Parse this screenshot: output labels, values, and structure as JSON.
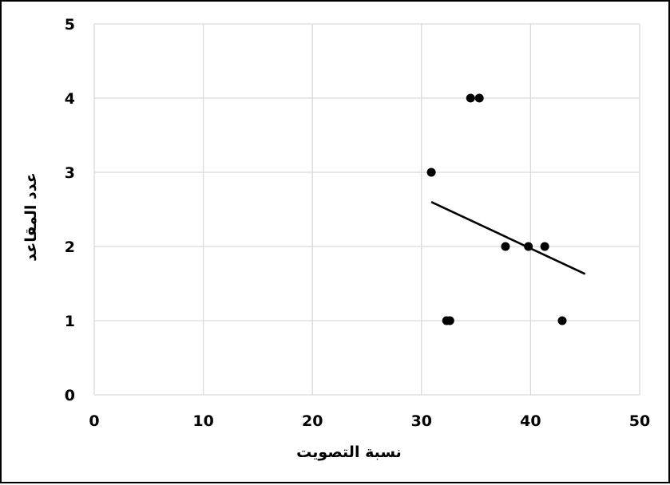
{
  "chart_data": {
    "type": "scatter",
    "title": "",
    "xlabel": "نسبة التصويت",
    "ylabel": "عدد المقاعد",
    "xlim": [
      0,
      50
    ],
    "ylim": [
      0,
      5
    ],
    "xticks": [
      0,
      10,
      20,
      30,
      40,
      50
    ],
    "yticks": [
      0,
      1,
      2,
      3,
      4,
      5
    ],
    "grid": true,
    "legend": "none",
    "marker_color": "#000000",
    "grid_color": "#d9d9d9",
    "points": [
      {
        "x": 30.9,
        "y": 3
      },
      {
        "x": 34.5,
        "y": 4
      },
      {
        "x": 35.3,
        "y": 4
      },
      {
        "x": 32.3,
        "y": 1
      },
      {
        "x": 32.6,
        "y": 1
      },
      {
        "x": 37.7,
        "y": 2
      },
      {
        "x": 39.8,
        "y": 2
      },
      {
        "x": 41.3,
        "y": 2
      },
      {
        "x": 42.9,
        "y": 1
      }
    ],
    "trendline": {
      "x": [
        30.9,
        45
      ],
      "y": [
        2.6,
        1.63
      ]
    }
  }
}
